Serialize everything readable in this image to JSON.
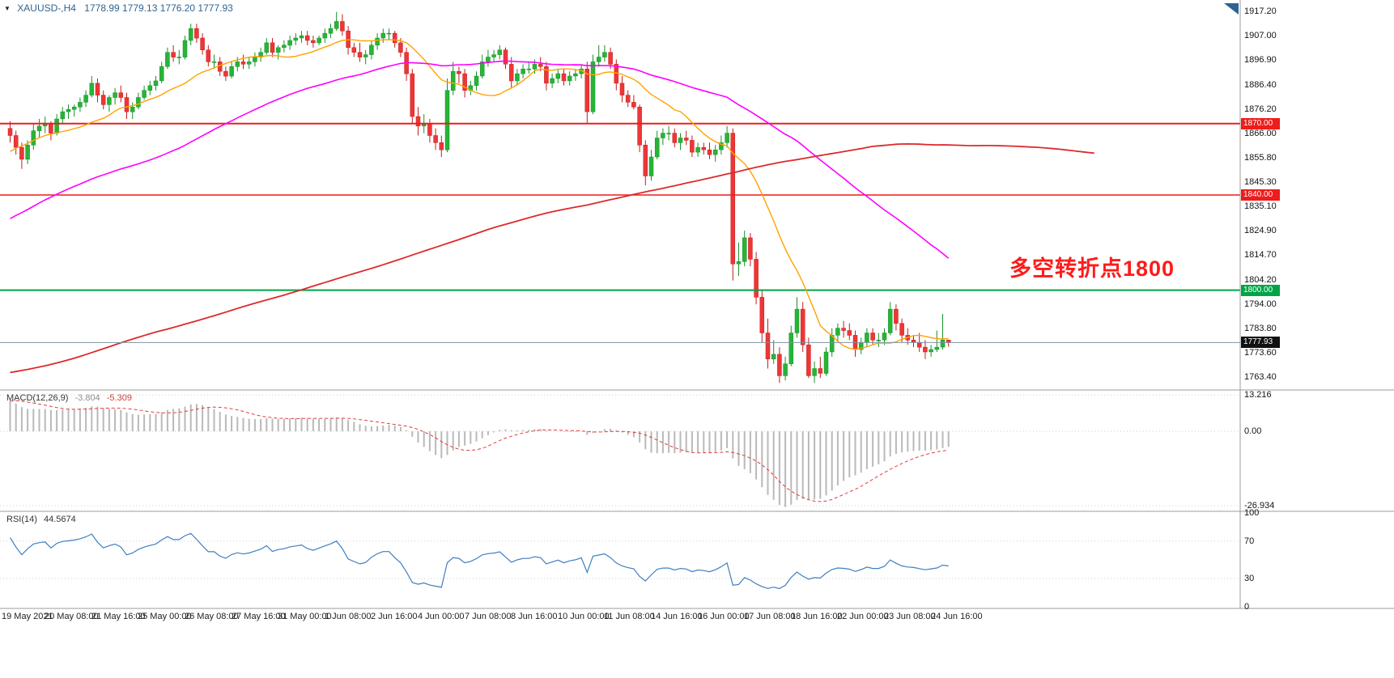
{
  "header": {
    "dropdown_icon": "▼",
    "symbol_info": "XAUUSD-,H4",
    "ohlc_values": "1778.99 1779.13 1776.20 1777.93"
  },
  "annotation": {
    "text": "多空转折点1800",
    "color": "#ff1a1a"
  },
  "panels": {
    "macd": {
      "name": "MACD(12,26,9)",
      "value_main": "-3.804",
      "value_signal": "-5.309",
      "scale_labels": [
        {
          "text": "13.216",
          "value": 13.216
        },
        {
          "text": "0.00",
          "value": 0
        },
        {
          "text": "-26.934",
          "value": -26.934
        }
      ]
    },
    "rsi": {
      "name": "RSI(14)",
      "value": "44.5674",
      "scale_labels": [
        {
          "text": "100",
          "value": 100
        },
        {
          "text": "70",
          "value": 70
        },
        {
          "text": "30",
          "value": 30
        },
        {
          "text": "0",
          "value": 0
        }
      ],
      "levels": [
        70,
        30
      ]
    }
  },
  "price_axis": {
    "labels": [
      "1917.20",
      "1907.00",
      "1896.90",
      "1886.40",
      "1876.20",
      "1866.00",
      "1855.80",
      "1845.30",
      "1835.10",
      "1824.90",
      "1814.70",
      "1804.20",
      "1794.00",
      "1783.80",
      "1773.60",
      "1763.40"
    ]
  },
  "time_axis": {
    "labels": [
      "19 May 2021",
      "20 May 08:00",
      "21 May 16:00",
      "25 May 00:00",
      "26 May 08:00",
      "27 May 16:00",
      "31 May 00:00",
      "1 Jun 08:00",
      "2 Jun 16:00",
      "4 Jun 00:00",
      "7 Jun 08:00",
      "8 Jun 16:00",
      "10 Jun 00:00",
      "11 Jun 08:00",
      "14 Jun 16:00",
      "16 Jun 00:00",
      "17 Jun 08:00",
      "18 Jun 16:00",
      "22 Jun 00:00",
      "23 Jun 08:00",
      "24 Jun 16:00"
    ]
  },
  "levels": [
    {
      "label": "1870.00",
      "value": 1870.0,
      "color": "#ee1c1c",
      "width": 2
    },
    {
      "label": "1840.00",
      "value": 1840.0,
      "color": "#ee1c1c",
      "width": 1.5
    },
    {
      "label": "1800.00",
      "value": 1800.0,
      "color": "#00a447",
      "width": 2
    }
  ],
  "current_price": {
    "label": "1777.93",
    "value": 1777.93,
    "line_color": "#7d93a6",
    "tag_color": "#111111"
  },
  "chart_data": {
    "type": "candlestick",
    "symbol": "XAUUSD-",
    "timeframe": "H4",
    "title": "XAUUSD-,H4 1778.99 1779.13 1776.20 1777.93",
    "price_range": [
      1758,
      1922
    ],
    "label_every_n_candles": 8,
    "up_color": "#27b437",
    "up_border": "#17912a",
    "down_color": "#ee3636",
    "down_border": "#c21d1d",
    "ohlc": [
      [
        1868,
        1871,
        1862,
        1865
      ],
      [
        1865,
        1867,
        1857,
        1860
      ],
      [
        1860,
        1862,
        1851,
        1855
      ],
      [
        1855,
        1863,
        1853,
        1861
      ],
      [
        1861,
        1870,
        1859,
        1867
      ],
      [
        1867,
        1872,
        1864,
        1869
      ],
      [
        1869,
        1873,
        1866,
        1870
      ],
      [
        1870,
        1871,
        1863,
        1866
      ],
      [
        1866,
        1874,
        1865,
        1872
      ],
      [
        1872,
        1877,
        1870,
        1875
      ],
      [
        1875,
        1878,
        1872,
        1876
      ],
      [
        1876,
        1878,
        1873,
        1877
      ],
      [
        1877,
        1881,
        1875,
        1879
      ],
      [
        1879,
        1884,
        1877,
        1882
      ],
      [
        1882,
        1890,
        1881,
        1887
      ],
      [
        1887,
        1889,
        1879,
        1882
      ],
      [
        1882,
        1884,
        1876,
        1878
      ],
      [
        1878,
        1882,
        1875,
        1881
      ],
      [
        1881,
        1885,
        1878,
        1883
      ],
      [
        1883,
        1886,
        1879,
        1881
      ],
      [
        1881,
        1883,
        1872,
        1875
      ],
      [
        1875,
        1879,
        1872,
        1877
      ],
      [
        1877,
        1883,
        1876,
        1881
      ],
      [
        1881,
        1886,
        1880,
        1884
      ],
      [
        1884,
        1888,
        1882,
        1886
      ],
      [
        1886,
        1890,
        1884,
        1888
      ],
      [
        1888,
        1896,
        1887,
        1894
      ],
      [
        1894,
        1902,
        1893,
        1900
      ],
      [
        1900,
        1903,
        1896,
        1898
      ],
      [
        1898,
        1901,
        1895,
        1898
      ],
      [
        1898,
        1907,
        1897,
        1905
      ],
      [
        1905,
        1912,
        1903,
        1910
      ],
      [
        1910,
        1912,
        1904,
        1906
      ],
      [
        1906,
        1908,
        1899,
        1901
      ],
      [
        1901,
        1903,
        1894,
        1896
      ],
      [
        1896,
        1899,
        1893,
        1896
      ],
      [
        1896,
        1898,
        1890,
        1892
      ],
      [
        1892,
        1894,
        1888,
        1890
      ],
      [
        1890,
        1896,
        1889,
        1894
      ],
      [
        1894,
        1898,
        1892,
        1896
      ],
      [
        1896,
        1899,
        1893,
        1895
      ],
      [
        1895,
        1898,
        1893,
        1896
      ],
      [
        1896,
        1900,
        1894,
        1898
      ],
      [
        1898,
        1902,
        1896,
        1900
      ],
      [
        1900,
        1906,
        1899,
        1904
      ],
      [
        1904,
        1906,
        1898,
        1900
      ],
      [
        1900,
        1903,
        1897,
        1902
      ],
      [
        1902,
        1905,
        1900,
        1903
      ],
      [
        1903,
        1907,
        1901,
        1905
      ],
      [
        1905,
        1908,
        1903,
        1906
      ],
      [
        1906,
        1909,
        1904,
        1907
      ],
      [
        1907,
        1909,
        1903,
        1905
      ],
      [
        1905,
        1907,
        1902,
        1904
      ],
      [
        1904,
        1907,
        1903,
        1906
      ],
      [
        1906,
        1910,
        1904,
        1908
      ],
      [
        1908,
        1912,
        1906,
        1910
      ],
      [
        1910,
        1917,
        1909,
        1913
      ],
      [
        1913,
        1916,
        1907,
        1909
      ],
      [
        1909,
        1911,
        1899,
        1902
      ],
      [
        1902,
        1904,
        1898,
        1900
      ],
      [
        1900,
        1904,
        1896,
        1898
      ],
      [
        1898,
        1901,
        1895,
        1899
      ],
      [
        1899,
        1905,
        1897,
        1903
      ],
      [
        1903,
        1908,
        1901,
        1906
      ],
      [
        1906,
        1910,
        1904,
        1908
      ],
      [
        1908,
        1910,
        1905,
        1908
      ],
      [
        1908,
        1909,
        1902,
        1904
      ],
      [
        1904,
        1906,
        1898,
        1900
      ],
      [
        1900,
        1902,
        1888,
        1891
      ],
      [
        1891,
        1893,
        1870,
        1873
      ],
      [
        1873,
        1877,
        1865,
        1869
      ],
      [
        1869,
        1874,
        1866,
        1870
      ],
      [
        1870,
        1872,
        1862,
        1865
      ],
      [
        1865,
        1868,
        1859,
        1862
      ],
      [
        1862,
        1865,
        1856,
        1859
      ],
      [
        1859,
        1889,
        1858,
        1884
      ],
      [
        1884,
        1896,
        1882,
        1892
      ],
      [
        1892,
        1894,
        1887,
        1891
      ],
      [
        1891,
        1893,
        1881,
        1884
      ],
      [
        1884,
        1888,
        1882,
        1886
      ],
      [
        1886,
        1892,
        1884,
        1890
      ],
      [
        1890,
        1899,
        1889,
        1896
      ],
      [
        1896,
        1901,
        1894,
        1898
      ],
      [
        1898,
        1901,
        1896,
        1899
      ],
      [
        1899,
        1903,
        1897,
        1901
      ],
      [
        1901,
        1902,
        1893,
        1895
      ],
      [
        1895,
        1898,
        1885,
        1888
      ],
      [
        1888,
        1893,
        1886,
        1891
      ],
      [
        1891,
        1895,
        1889,
        1893
      ],
      [
        1893,
        1896,
        1891,
        1893
      ],
      [
        1893,
        1897,
        1891,
        1895
      ],
      [
        1895,
        1898,
        1892,
        1894
      ],
      [
        1894,
        1896,
        1884,
        1887
      ],
      [
        1887,
        1891,
        1885,
        1889
      ],
      [
        1889,
        1893,
        1887,
        1891
      ],
      [
        1891,
        1893,
        1886,
        1888
      ],
      [
        1888,
        1892,
        1886,
        1890
      ],
      [
        1890,
        1893,
        1888,
        1891
      ],
      [
        1891,
        1895,
        1889,
        1893
      ],
      [
        1893,
        1896,
        1870,
        1875
      ],
      [
        1875,
        1899,
        1874,
        1896
      ],
      [
        1896,
        1903,
        1894,
        1898
      ],
      [
        1898,
        1903,
        1896,
        1900
      ],
      [
        1900,
        1902,
        1893,
        1895
      ],
      [
        1895,
        1897,
        1884,
        1887
      ],
      [
        1887,
        1890,
        1879,
        1882
      ],
      [
        1882,
        1884,
        1877,
        1879
      ],
      [
        1879,
        1882,
        1876,
        1877
      ],
      [
        1877,
        1878,
        1858,
        1861
      ],
      [
        1861,
        1863,
        1844,
        1848
      ],
      [
        1848,
        1859,
        1846,
        1856
      ],
      [
        1856,
        1867,
        1855,
        1864
      ],
      [
        1864,
        1868,
        1861,
        1866
      ],
      [
        1866,
        1869,
        1863,
        1866
      ],
      [
        1866,
        1868,
        1860,
        1862
      ],
      [
        1862,
        1866,
        1859,
        1864
      ],
      [
        1864,
        1867,
        1861,
        1863
      ],
      [
        1863,
        1865,
        1856,
        1858
      ],
      [
        1858,
        1862,
        1856,
        1860
      ],
      [
        1860,
        1862,
        1857,
        1859
      ],
      [
        1859,
        1862,
        1855,
        1857
      ],
      [
        1857,
        1861,
        1854,
        1859
      ],
      [
        1859,
        1865,
        1857,
        1862
      ],
      [
        1862,
        1869,
        1860,
        1866
      ],
      [
        1866,
        1868,
        1804,
        1811
      ],
      [
        1811,
        1820,
        1806,
        1812
      ],
      [
        1812,
        1825,
        1810,
        1822
      ],
      [
        1822,
        1824,
        1810,
        1813
      ],
      [
        1813,
        1816,
        1794,
        1797
      ],
      [
        1797,
        1800,
        1778,
        1782
      ],
      [
        1782,
        1788,
        1767,
        1771
      ],
      [
        1771,
        1779,
        1769,
        1773
      ],
      [
        1773,
        1776,
        1761,
        1764
      ],
      [
        1764,
        1772,
        1762,
        1769
      ],
      [
        1769,
        1785,
        1768,
        1782
      ],
      [
        1782,
        1797,
        1780,
        1792
      ],
      [
        1792,
        1795,
        1774,
        1777
      ],
      [
        1777,
        1780,
        1763,
        1764
      ],
      [
        1764,
        1770,
        1761,
        1767
      ],
      [
        1767,
        1772,
        1763,
        1765
      ],
      [
        1765,
        1776,
        1764,
        1774
      ],
      [
        1774,
        1784,
        1772,
        1781
      ],
      [
        1781,
        1786,
        1778,
        1784
      ],
      [
        1784,
        1787,
        1780,
        1783
      ],
      [
        1783,
        1786,
        1779,
        1781
      ],
      [
        1781,
        1783,
        1772,
        1775
      ],
      [
        1775,
        1780,
        1773,
        1778
      ],
      [
        1778,
        1784,
        1776,
        1782
      ],
      [
        1782,
        1784,
        1777,
        1779
      ],
      [
        1779,
        1782,
        1776,
        1779
      ],
      [
        1779,
        1784,
        1777,
        1782
      ],
      [
        1782,
        1795,
        1781,
        1792
      ],
      [
        1792,
        1794,
        1783,
        1786
      ],
      [
        1786,
        1788,
        1778,
        1781
      ],
      [
        1781,
        1784,
        1777,
        1779
      ],
      [
        1779,
        1781,
        1776,
        1778
      ],
      [
        1778,
        1782,
        1774,
        1776
      ],
      [
        1776,
        1779,
        1771,
        1774
      ],
      [
        1774,
        1777,
        1772,
        1775
      ],
      [
        1775,
        1783,
        1774,
        1776
      ],
      [
        1776,
        1790,
        1775,
        1779
      ],
      [
        1779,
        1779.13,
        1776.2,
        1777.93
      ]
    ],
    "moving_averages": [
      {
        "name": "fast-orange",
        "period": 16,
        "color": "#ffa200",
        "shift": 0,
        "stroke_width": 1.4
      },
      {
        "name": "medium-magenta",
        "period": 60,
        "color": "#ff00ff",
        "shift": 0,
        "stroke_width": 1.6
      },
      {
        "name": "slow-red",
        "period": 200,
        "color": "#dd2a2a",
        "shift": 25,
        "stroke_width": 1.8
      }
    ],
    "macd": {
      "fast": 12,
      "slow": 26,
      "signal": 9,
      "ylim": [
        -29,
        15
      ],
      "bar_color": "#b9b9b9",
      "signal_color": "#e23b3b"
    },
    "rsi": {
      "period": 14,
      "ylim": [
        0,
        100
      ],
      "color": "#3e7fc1"
    },
    "warmup_prev_close": 1725,
    "warmup_daily_closes": [
      1727,
      1732,
      1712,
      1686,
      1708,
      1729,
      1729,
      1728,
      1743,
      1737,
      1756,
      1744,
      1733,
      1745,
      1736,
      1763,
      1776,
      1771,
      1778,
      1793,
      1784,
      1777,
      1781,
      1776,
      1781,
      1772,
      1769,
      1793,
      1779,
      1786,
      1815,
      1831,
      1836,
      1836,
      1815,
      1826,
      1843,
      1866,
      1869
    ]
  }
}
